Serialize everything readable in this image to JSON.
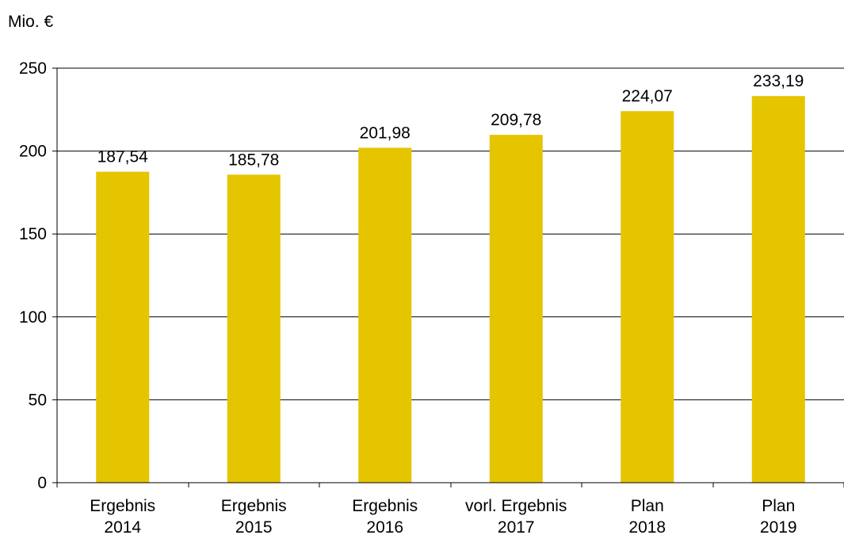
{
  "chart_data": {
    "type": "bar",
    "unit_label": "Mio. €",
    "categories": [
      [
        "Ergebnis",
        "2014"
      ],
      [
        "Ergebnis",
        "2015"
      ],
      [
        "Ergebnis",
        "2016"
      ],
      [
        "vorl. Ergebnis",
        "2017"
      ],
      [
        "Plan",
        "2018"
      ],
      [
        "Plan",
        "2019"
      ]
    ],
    "values": [
      187.54,
      185.78,
      201.98,
      209.78,
      224.07,
      233.19
    ],
    "value_labels": [
      "187,54",
      "185,78",
      "201,98",
      "209,78",
      "224,07",
      "233,19"
    ],
    "ylim": [
      0,
      250
    ],
    "yticks": [
      0,
      50,
      100,
      150,
      200,
      250
    ],
    "grid": true,
    "legend": "none",
    "colors": {
      "bar": "#E5C400",
      "grid": "#000000",
      "axis": "#000000"
    }
  }
}
